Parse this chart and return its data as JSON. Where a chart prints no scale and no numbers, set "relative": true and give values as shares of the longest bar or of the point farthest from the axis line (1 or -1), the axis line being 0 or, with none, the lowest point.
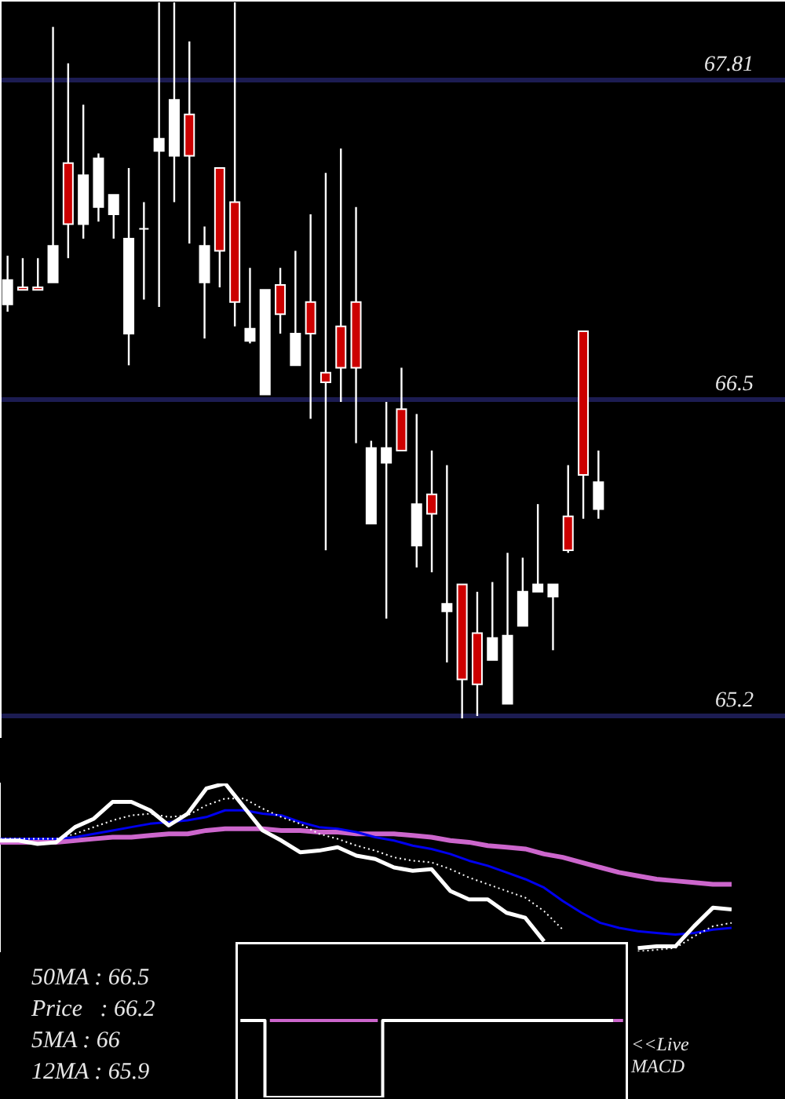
{
  "chart_data": [
    {
      "type": "candlestick",
      "categories": [
        null,
        null,
        null,
        null,
        null,
        null,
        null,
        null,
        null,
        null,
        null,
        null,
        null,
        null,
        null,
        null,
        null,
        null,
        null,
        null,
        null,
        null,
        null,
        null,
        null,
        null,
        null,
        null,
        null,
        null,
        null,
        null,
        null,
        null,
        null,
        null,
        null,
        null,
        null,
        null
      ],
      "ohlc": [
        [
          66.89,
          67.09,
          66.86,
          66.99
        ],
        [
          66.96,
          67.08,
          66.95,
          66.95
        ],
        [
          66.96,
          67.08,
          66.95,
          66.95
        ],
        [
          66.98,
          68.03,
          66.98,
          67.13
        ],
        [
          67.47,
          67.88,
          67.08,
          67.22
        ],
        [
          67.22,
          67.71,
          67.16,
          67.42
        ],
        [
          67.29,
          67.51,
          67.23,
          67.49
        ],
        [
          67.26,
          67.34,
          67.16,
          67.34
        ],
        [
          66.77,
          67.45,
          66.64,
          67.16
        ],
        [
          67.2,
          67.31,
          66.91,
          67.2
        ],
        [
          67.52,
          68.13,
          66.88,
          67.57
        ],
        [
          67.5,
          68.13,
          67.31,
          67.73
        ],
        [
          67.67,
          67.97,
          67.14,
          67.5
        ],
        [
          66.98,
          67.21,
          66.75,
          67.13
        ],
        [
          67.45,
          67.45,
          66.96,
          67.11
        ],
        [
          67.31,
          68.13,
          66.8,
          66.9
        ],
        [
          66.74,
          67.04,
          66.73,
          66.79
        ],
        [
          66.52,
          66.95,
          66.52,
          66.95
        ],
        [
          66.97,
          67.04,
          66.77,
          66.85
        ],
        [
          66.64,
          67.11,
          66.64,
          66.77
        ],
        [
          66.9,
          67.26,
          66.42,
          66.77
        ],
        [
          66.61,
          67.43,
          65.88,
          66.57
        ],
        [
          66.8,
          67.53,
          66.49,
          66.63
        ],
        [
          66.9,
          67.29,
          66.32,
          66.63
        ],
        [
          65.99,
          66.33,
          65.99,
          66.3
        ],
        [
          66.24,
          66.49,
          65.6,
          66.3
        ],
        [
          66.46,
          66.63,
          66.29,
          66.29
        ],
        [
          65.9,
          66.44,
          65.81,
          66.07
        ],
        [
          66.11,
          66.29,
          65.79,
          66.03
        ],
        [
          65.63,
          66.23,
          65.42,
          65.66
        ],
        [
          65.74,
          65.74,
          65.19,
          65.35
        ],
        [
          65.54,
          65.71,
          65.2,
          65.33
        ],
        [
          65.43,
          65.75,
          65.43,
          65.52
        ],
        [
          65.25,
          65.87,
          65.25,
          65.53
        ],
        [
          65.57,
          65.85,
          65.57,
          65.71
        ],
        [
          65.71,
          66.07,
          65.71,
          65.74
        ],
        [
          65.69,
          65.74,
          65.47,
          65.74
        ],
        [
          66.02,
          66.23,
          65.87,
          65.88
        ],
        [
          66.78,
          66.78,
          66.01,
          66.19
        ],
        [
          66.05,
          66.29,
          66.01,
          66.16
        ]
      ],
      "colors": [
        "#ffffff",
        "#cc0000",
        "#cc0000",
        "#ffffff",
        "#cc0000",
        "#ffffff",
        "#ffffff",
        "#ffffff",
        "#ffffff",
        "#ffffff",
        "#ffffff",
        "#ffffff",
        "#cc0000",
        "#ffffff",
        "#cc0000",
        "#cc0000",
        "#ffffff",
        "#ffffff",
        "#cc0000",
        "#ffffff",
        "#cc0000",
        "#cc0000",
        "#cc0000",
        "#cc0000",
        "#ffffff",
        "#ffffff",
        "#cc0000",
        "#ffffff",
        "#cc0000",
        "#ffffff",
        "#cc0000",
        "#cc0000",
        "#ffffff",
        "#ffffff",
        "#ffffff",
        "#ffffff",
        "#ffffff",
        "#cc0000",
        "#cc0000",
        "#ffffff"
      ],
      "color": "#ffffff",
      "ylim": [
        65.11,
        68.14
      ],
      "yticks": [
        65.2,
        66.5,
        67.81
      ],
      "grid": "y",
      "tick_labels": "y"
    },
    {
      "type": "line",
      "relative": true,
      "categories": [
        null,
        null,
        null,
        null,
        null,
        null,
        null,
        null,
        null,
        null,
        null,
        null,
        null,
        null,
        null,
        null,
        null,
        null,
        null,
        null,
        null,
        null,
        null,
        null,
        null,
        null,
        null,
        null,
        null,
        null,
        null,
        null,
        null,
        null,
        null,
        null,
        null,
        null,
        null,
        null
      ],
      "series": [
        {
          "color": "#ffffff",
          "line_style": "solid",
          "values": [
            0.66,
            0.66,
            0.64,
            0.65,
            0.74,
            0.79,
            0.89,
            0.89,
            0.84,
            0.75,
            0.82,
            0.97,
            1.0,
            0.86,
            0.72,
            0.66,
            0.59,
            0.6,
            0.62,
            0.57,
            0.55,
            0.5,
            0.48,
            0.49,
            0.36,
            0.31,
            0.31,
            0.23,
            0.2,
            0.06,
            null,
            null,
            null,
            null,
            0.02,
            0.03,
            0.03,
            0.15,
            0.26,
            0.25
          ]
        },
        {
          "color": "#ffffff",
          "line_style": "dotted",
          "values": [
            0.67,
            0.67,
            0.67,
            0.67,
            0.7,
            0.74,
            0.78,
            0.81,
            0.82,
            0.8,
            0.81,
            0.87,
            0.91,
            0.91,
            0.85,
            0.8,
            0.76,
            0.7,
            0.67,
            0.63,
            0.6,
            0.56,
            0.54,
            0.53,
            0.49,
            0.44,
            0.4,
            0.36,
            0.32,
            0.24,
            0.13,
            null,
            null,
            null,
            0.0,
            0.01,
            0.02,
            0.09,
            0.15,
            0.17
          ]
        },
        {
          "color": "#0000ee",
          "line_style": "solid",
          "values": [
            0.67,
            0.67,
            0.67,
            0.67,
            0.68,
            0.7,
            0.72,
            0.74,
            0.76,
            0.77,
            0.78,
            0.8,
            0.84,
            0.84,
            0.82,
            0.81,
            0.77,
            0.74,
            0.73,
            0.71,
            0.68,
            0.66,
            0.63,
            0.61,
            0.58,
            0.54,
            0.51,
            0.47,
            0.43,
            0.38,
            0.3,
            0.23,
            0.17,
            0.14,
            0.12,
            0.11,
            0.1,
            0.11,
            0.13,
            0.14
          ]
        },
        {
          "color": "#cc66cc",
          "line_style": "solid",
          "values": [
            0.65,
            0.65,
            0.65,
            0.65,
            0.66,
            0.67,
            0.68,
            0.68,
            0.69,
            0.7,
            0.7,
            0.72,
            0.73,
            0.73,
            0.73,
            0.72,
            0.72,
            0.71,
            0.71,
            0.7,
            0.7,
            0.7,
            0.69,
            0.68,
            0.66,
            0.65,
            0.63,
            0.62,
            0.61,
            0.58,
            0.56,
            0.53,
            0.5,
            0.47,
            0.45,
            0.43,
            0.42,
            0.41,
            0.4,
            0.4
          ]
        }
      ],
      "annotations": [
        "50MA : 66.5",
        "Price   : 66.2",
        "5MA : 66",
        "12MA : 65.9"
      ],
      "tick_labels": false
    },
    {
      "type": "step",
      "relative": true,
      "categories": [
        null,
        null,
        null,
        null,
        null,
        null,
        null,
        null,
        null,
        null,
        null,
        null,
        null,
        null,
        null,
        null,
        null,
        null,
        null,
        null,
        null,
        null,
        null,
        null,
        null,
        null,
        null,
        null,
        null,
        null,
        null,
        null,
        null,
        null,
        null,
        null,
        null,
        null,
        null,
        null
      ],
      "series": [
        {
          "color": "#ffffff",
          "values": [
            1,
            1,
            1,
            0,
            0,
            0,
            0,
            0,
            0,
            0,
            0,
            0,
            0,
            0,
            0,
            1,
            1,
            1,
            1,
            1,
            1,
            1,
            1,
            1,
            1,
            1,
            1,
            1,
            1,
            1,
            1,
            1,
            1,
            1,
            1,
            1,
            1,
            1,
            1,
            null
          ]
        },
        {
          "color": "#cc66cc",
          "values": [
            null,
            null,
            null,
            1,
            1,
            1,
            1,
            1,
            1,
            1,
            1,
            1,
            1,
            1,
            1,
            null,
            null,
            null,
            null,
            null,
            null,
            null,
            null,
            null,
            null,
            null,
            null,
            null,
            null,
            null,
            null,
            null,
            null,
            null,
            null,
            null,
            null,
            null,
            1,
            1
          ]
        }
      ],
      "annotations": [
        "<<Live MACD"
      ],
      "tick_labels": false
    }
  ]
}
